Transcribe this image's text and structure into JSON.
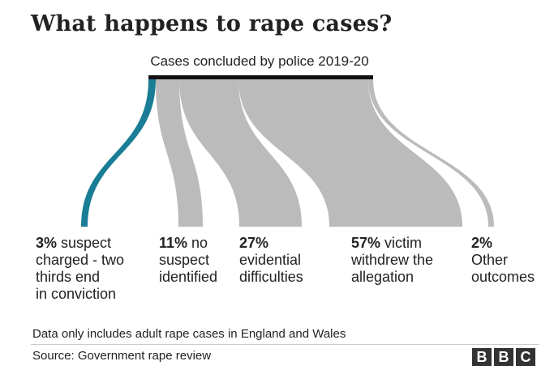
{
  "title": "What happens to rape cases?",
  "subtitle": "Cases concluded by police 2019-20",
  "colors": {
    "highlight": "#1a7d96",
    "flow": "#bbbbbb",
    "bar": "#111111"
  },
  "outcomes": [
    {
      "pct": "3%",
      "text_lines": [
        " suspect",
        "charged - two",
        "thirds end",
        "in conviction"
      ],
      "value": 3
    },
    {
      "pct": "11%",
      "text_lines": [
        " no",
        "suspect",
        "identified"
      ],
      "value": 11
    },
    {
      "pct": "27%",
      "text_lines": [
        "",
        "evidential",
        "difficulties"
      ],
      "value": 27
    },
    {
      "pct": "57%",
      "text_lines": [
        " victim",
        "withdrew the",
        "allegation"
      ],
      "value": 57
    },
    {
      "pct": "2%",
      "text_lines": [
        "",
        "Other",
        "outcomes"
      ],
      "value": 2
    }
  ],
  "footnote": "Data only includes adult rape cases in England and Wales",
  "source": "Source: Government rape review",
  "logo": {
    "letters": [
      "B",
      "B",
      "C"
    ]
  }
}
